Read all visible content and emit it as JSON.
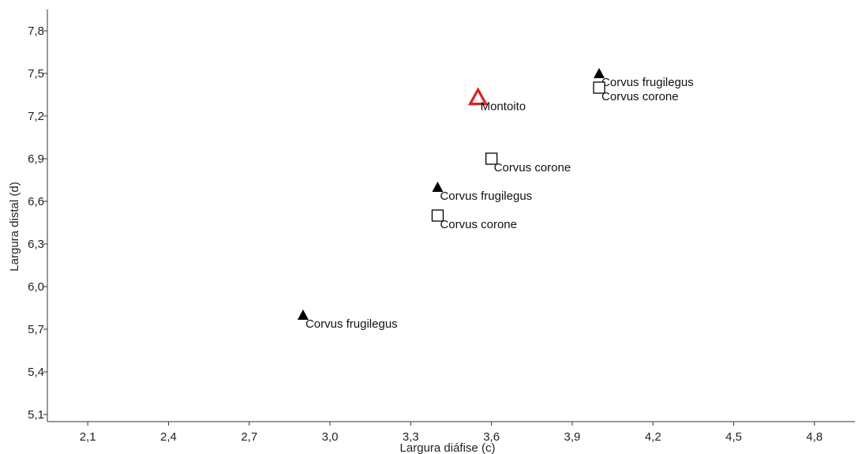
{
  "chart_data": {
    "type": "scatter",
    "xlabel": "Largura diáfise (c)",
    "ylabel": "Largura distal (d)",
    "xlim": [
      1.95,
      4.95
    ],
    "ylim": [
      5.05,
      7.95
    ],
    "x_ticks": [
      "2,1",
      "2,4",
      "2,7",
      "3,0",
      "3,3",
      "3,6",
      "3,9",
      "4,2",
      "4,5",
      "4,8"
    ],
    "x_tick_values": [
      2.1,
      2.4,
      2.7,
      3.0,
      3.3,
      3.6,
      3.9,
      4.2,
      4.5,
      4.8
    ],
    "y_ticks": [
      "5,1",
      "5,4",
      "5,7",
      "6,0",
      "6,3",
      "6,6",
      "6,9",
      "7,2",
      "7,5",
      "7,8"
    ],
    "y_tick_values": [
      5.1,
      5.4,
      5.7,
      6.0,
      6.3,
      6.6,
      6.9,
      7.2,
      7.5,
      7.8
    ],
    "grid": false,
    "points": [
      {
        "x": 4.0,
        "y": 7.5,
        "label": "Corvus frugilegus",
        "marker": "filled-triangle",
        "color": "#000000"
      },
      {
        "x": 4.0,
        "y": 7.4,
        "label": "Corvus corone",
        "marker": "open-square",
        "color": "#000000"
      },
      {
        "x": 3.55,
        "y": 7.33,
        "label": "Montoito",
        "marker": "open-triangle",
        "color": "#e02020"
      },
      {
        "x": 3.6,
        "y": 6.9,
        "label": "Corvus corone",
        "marker": "open-square",
        "color": "#000000"
      },
      {
        "x": 3.4,
        "y": 6.7,
        "label": "Corvus frugilegus",
        "marker": "filled-triangle",
        "color": "#000000"
      },
      {
        "x": 3.4,
        "y": 6.5,
        "label": "Corvus corone",
        "marker": "open-square",
        "color": "#000000"
      },
      {
        "x": 2.9,
        "y": 5.8,
        "label": "Corvus frugilegus",
        "marker": "filled-triangle",
        "color": "#000000"
      }
    ]
  }
}
